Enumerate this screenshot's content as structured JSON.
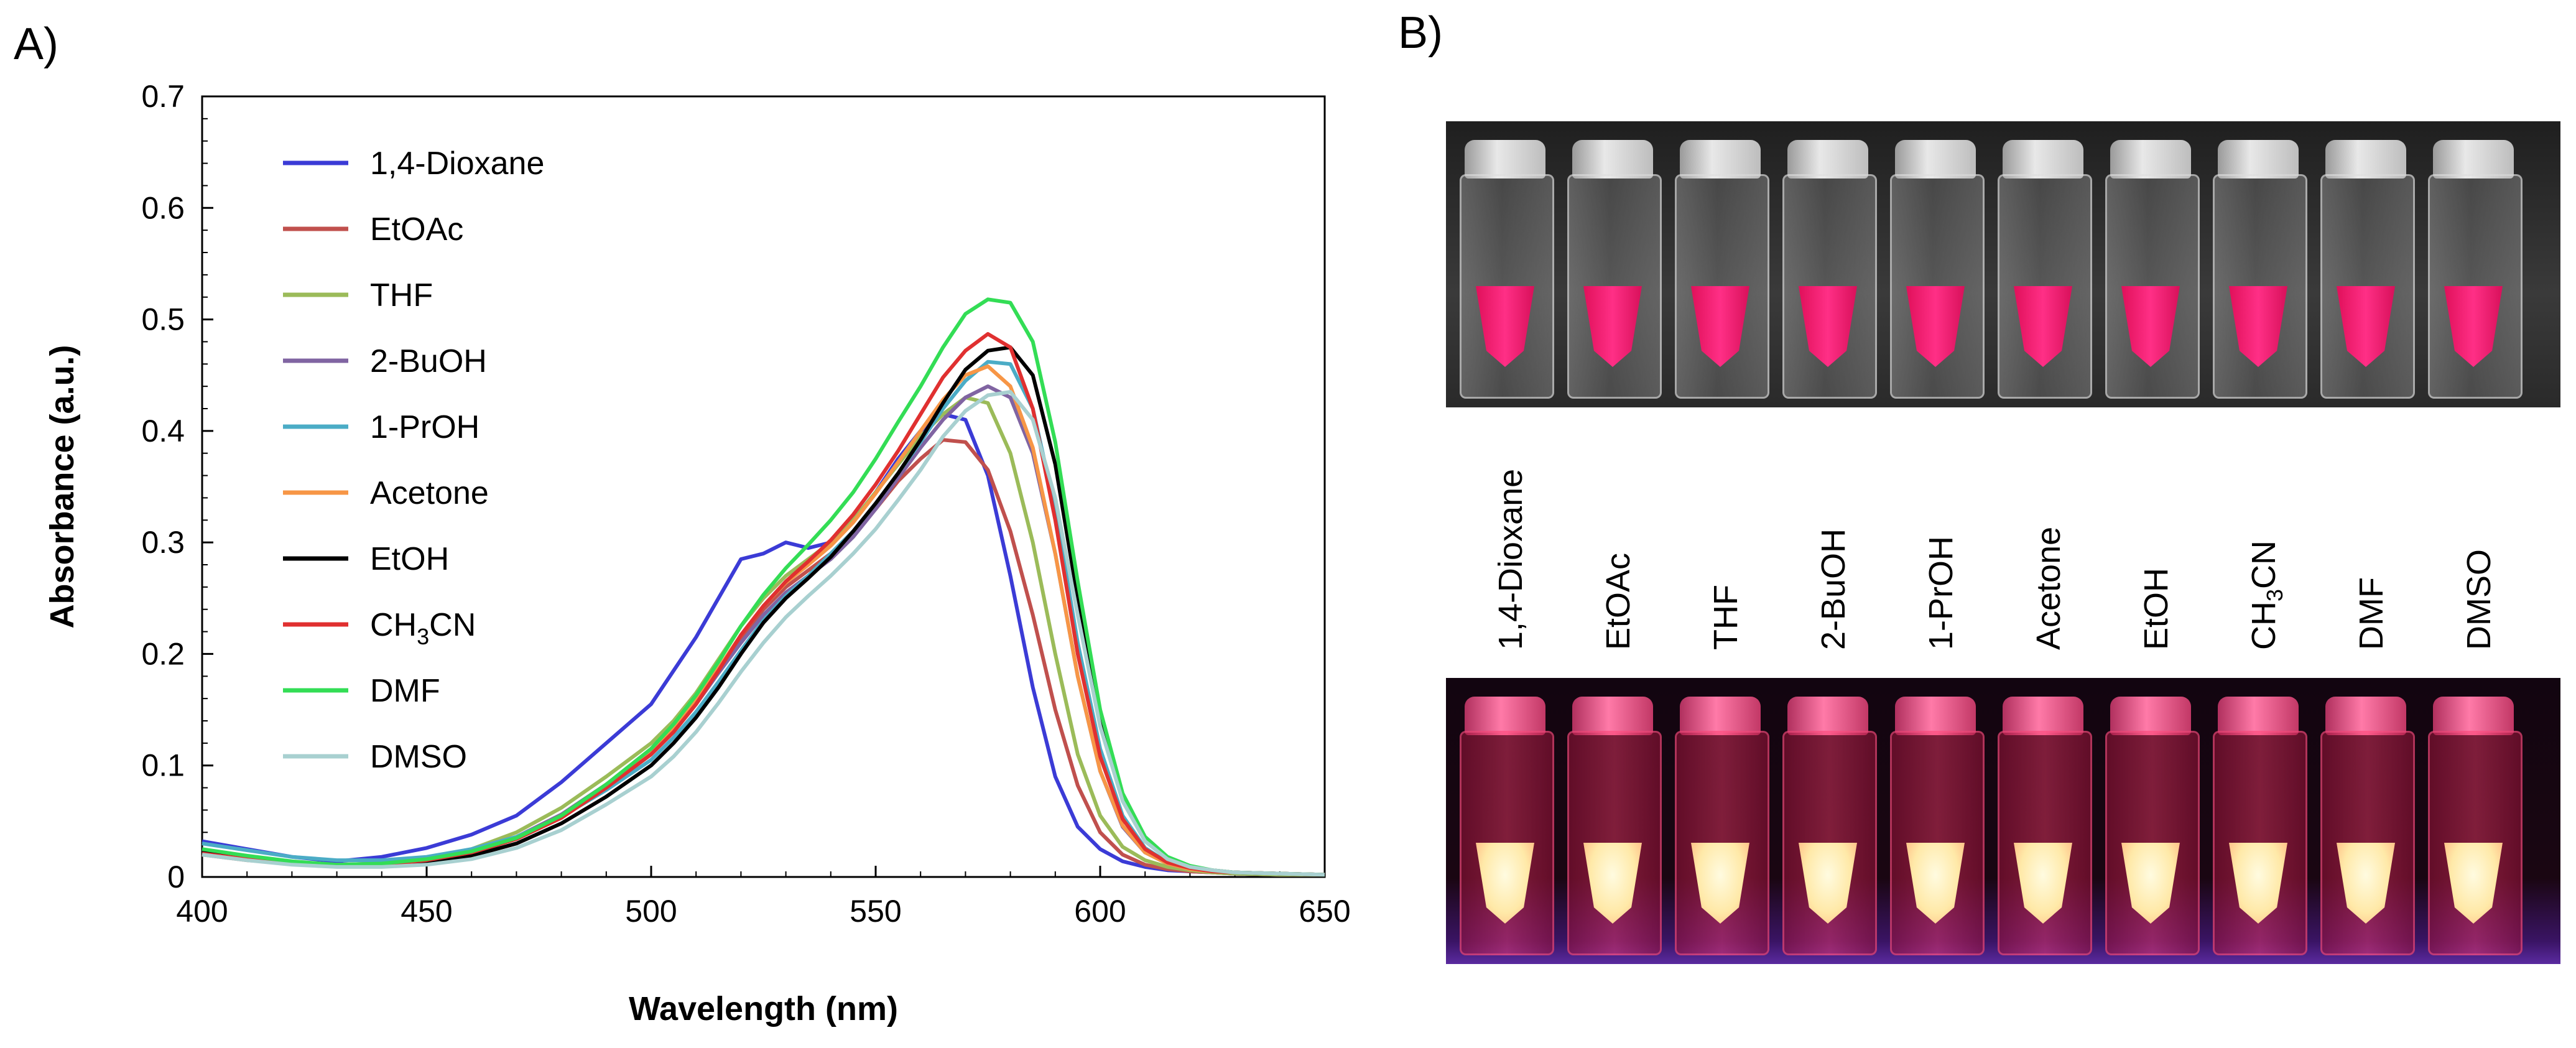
{
  "panel_a_label": "A)",
  "panel_b_label": "B)",
  "chart_data": {
    "type": "line",
    "xlabel": "Wavelength (nm)",
    "ylabel": "Absorbance (a.u.)",
    "xlim": [
      400,
      650
    ],
    "ylim": [
      0,
      0.7
    ],
    "xticks": [
      "400",
      "450",
      "500",
      "550",
      "600",
      "650"
    ],
    "yticks": [
      "0",
      "0.1",
      "0.2",
      "0.3",
      "0.4",
      "0.5",
      "0.6",
      "0.7"
    ],
    "grid": false,
    "legend_position": "top-left",
    "x": [
      400,
      410,
      420,
      430,
      440,
      450,
      460,
      470,
      480,
      490,
      500,
      505,
      510,
      515,
      520,
      525,
      530,
      535,
      540,
      545,
      550,
      555,
      560,
      565,
      570,
      575,
      580,
      585,
      590,
      595,
      600,
      605,
      610,
      615,
      620,
      625,
      630,
      640,
      650
    ],
    "series": [
      {
        "name": "1,4-Dioxane",
        "color": "#3b3bd6",
        "values": [
          0.032,
          0.025,
          0.018,
          0.014,
          0.018,
          0.026,
          0.038,
          0.055,
          0.085,
          0.12,
          0.155,
          0.185,
          0.215,
          0.25,
          0.285,
          0.29,
          0.3,
          0.295,
          0.3,
          0.32,
          0.345,
          0.375,
          0.4,
          0.415,
          0.41,
          0.36,
          0.27,
          0.17,
          0.09,
          0.045,
          0.025,
          0.014,
          0.009,
          0.006,
          0.005,
          0.004,
          0.003,
          0.002,
          0.002
        ]
      },
      {
        "name": "EtOAc",
        "color": "#c0504d",
        "values": [
          0.02,
          0.015,
          0.012,
          0.01,
          0.011,
          0.015,
          0.022,
          0.035,
          0.055,
          0.08,
          0.11,
          0.13,
          0.155,
          0.185,
          0.215,
          0.24,
          0.26,
          0.275,
          0.29,
          0.31,
          0.33,
          0.355,
          0.375,
          0.392,
          0.39,
          0.365,
          0.31,
          0.235,
          0.15,
          0.082,
          0.04,
          0.02,
          0.011,
          0.007,
          0.005,
          0.004,
          0.003,
          0.002,
          0.002
        ]
      },
      {
        "name": "THF",
        "color": "#9bbb59",
        "values": [
          0.02,
          0.016,
          0.013,
          0.011,
          0.012,
          0.017,
          0.025,
          0.04,
          0.062,
          0.09,
          0.12,
          0.14,
          0.165,
          0.195,
          0.225,
          0.25,
          0.27,
          0.285,
          0.3,
          0.32,
          0.345,
          0.37,
          0.395,
          0.415,
          0.43,
          0.425,
          0.38,
          0.3,
          0.2,
          0.11,
          0.055,
          0.027,
          0.015,
          0.009,
          0.006,
          0.004,
          0.003,
          0.002,
          0.002
        ]
      },
      {
        "name": "2-BuOH",
        "color": "#8064a2",
        "values": [
          0.022,
          0.017,
          0.013,
          0.011,
          0.012,
          0.016,
          0.023,
          0.036,
          0.056,
          0.083,
          0.112,
          0.132,
          0.155,
          0.183,
          0.21,
          0.235,
          0.255,
          0.27,
          0.285,
          0.305,
          0.33,
          0.358,
          0.385,
          0.41,
          0.43,
          0.44,
          0.43,
          0.38,
          0.29,
          0.18,
          0.095,
          0.045,
          0.022,
          0.012,
          0.007,
          0.005,
          0.004,
          0.003,
          0.002
        ]
      },
      {
        "name": "1-PrOH",
        "color": "#4bacc6",
        "values": [
          0.03,
          0.024,
          0.018,
          0.015,
          0.015,
          0.018,
          0.025,
          0.036,
          0.054,
          0.078,
          0.105,
          0.125,
          0.148,
          0.175,
          0.203,
          0.23,
          0.252,
          0.27,
          0.29,
          0.31,
          0.335,
          0.362,
          0.39,
          0.42,
          0.445,
          0.462,
          0.46,
          0.42,
          0.33,
          0.21,
          0.115,
          0.055,
          0.026,
          0.013,
          0.008,
          0.005,
          0.004,
          0.003,
          0.002
        ]
      },
      {
        "name": "Acetone",
        "color": "#f79646",
        "values": [
          0.02,
          0.016,
          0.012,
          0.01,
          0.011,
          0.015,
          0.022,
          0.035,
          0.055,
          0.082,
          0.112,
          0.133,
          0.158,
          0.187,
          0.217,
          0.243,
          0.264,
          0.28,
          0.297,
          0.318,
          0.344,
          0.372,
          0.4,
          0.428,
          0.45,
          0.458,
          0.44,
          0.385,
          0.29,
          0.18,
          0.095,
          0.046,
          0.022,
          0.012,
          0.007,
          0.005,
          0.004,
          0.003,
          0.002
        ]
      },
      {
        "name": "EtOH",
        "color": "#000000",
        "values": [
          0.022,
          0.016,
          0.012,
          0.01,
          0.01,
          0.013,
          0.019,
          0.03,
          0.048,
          0.072,
          0.1,
          0.12,
          0.143,
          0.17,
          0.2,
          0.228,
          0.25,
          0.268,
          0.287,
          0.31,
          0.335,
          0.362,
          0.392,
          0.425,
          0.455,
          0.472,
          0.475,
          0.45,
          0.37,
          0.25,
          0.14,
          0.07,
          0.033,
          0.016,
          0.009,
          0.006,
          0.004,
          0.003,
          0.002
        ]
      },
      {
        "name": "CH3CN",
        "color": "#e03030",
        "values": [
          0.021,
          0.016,
          0.012,
          0.01,
          0.011,
          0.015,
          0.022,
          0.034,
          0.053,
          0.08,
          0.11,
          0.13,
          0.155,
          0.185,
          0.217,
          0.243,
          0.265,
          0.283,
          0.302,
          0.325,
          0.352,
          0.382,
          0.415,
          0.448,
          0.472,
          0.487,
          0.475,
          0.42,
          0.32,
          0.2,
          0.108,
          0.052,
          0.025,
          0.013,
          0.008,
          0.005,
          0.004,
          0.003,
          0.002
        ]
      },
      {
        "name": "DMF",
        "color": "#33dd55",
        "values": [
          0.025,
          0.019,
          0.014,
          0.011,
          0.012,
          0.016,
          0.023,
          0.035,
          0.055,
          0.083,
          0.115,
          0.137,
          0.163,
          0.193,
          0.225,
          0.253,
          0.277,
          0.298,
          0.32,
          0.345,
          0.375,
          0.408,
          0.44,
          0.475,
          0.505,
          0.518,
          0.515,
          0.48,
          0.39,
          0.265,
          0.15,
          0.075,
          0.036,
          0.018,
          0.01,
          0.006,
          0.004,
          0.003,
          0.002
        ]
      },
      {
        "name": "DMSO",
        "color": "#a8d0d0",
        "values": [
          0.02,
          0.015,
          0.011,
          0.009,
          0.009,
          0.011,
          0.016,
          0.026,
          0.042,
          0.065,
          0.09,
          0.108,
          0.13,
          0.156,
          0.184,
          0.21,
          0.233,
          0.252,
          0.27,
          0.29,
          0.312,
          0.338,
          0.365,
          0.395,
          0.418,
          0.432,
          0.435,
          0.41,
          0.34,
          0.235,
          0.135,
          0.068,
          0.032,
          0.016,
          0.009,
          0.006,
          0.004,
          0.003,
          0.002
        ]
      }
    ]
  },
  "vial_labels": [
    {
      "text": "1,4-Dioxane"
    },
    {
      "text": "EtOAc"
    },
    {
      "text": "THF"
    },
    {
      "text": "2-BuOH"
    },
    {
      "text": "1-PrOH"
    },
    {
      "text": "Acetone"
    },
    {
      "text": "EtOH"
    },
    {
      "text": "CH",
      "sub": "3",
      "tail": "CN"
    },
    {
      "text": "DMF"
    },
    {
      "text": "DMSO"
    }
  ]
}
